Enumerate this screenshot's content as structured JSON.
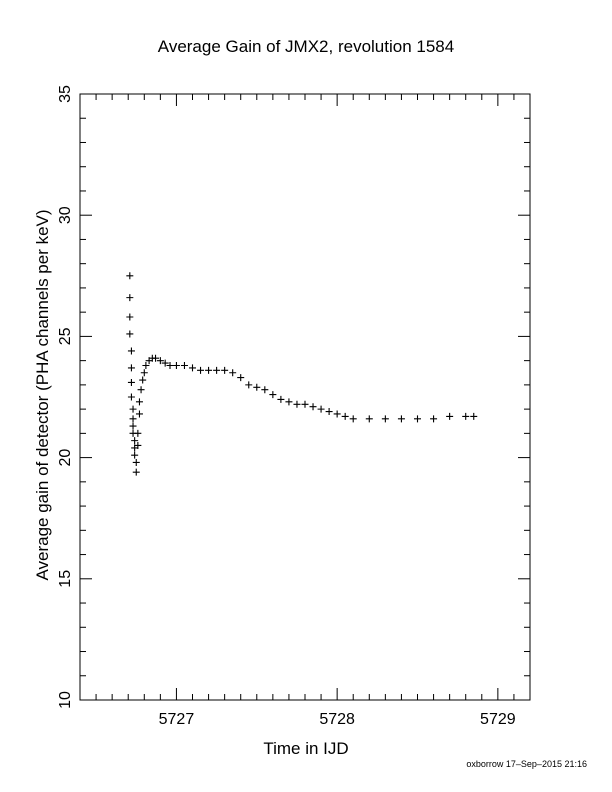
{
  "chart_data": {
    "type": "scatter",
    "title": "Average Gain of JMX2, revolution 1584",
    "xlabel": "Time in IJD",
    "ylabel": "Average gain of detector (PHA channels per keV)",
    "xlim": [
      5726.4,
      5729.2
    ],
    "ylim": [
      10,
      35
    ],
    "xticks": [
      5727,
      5728,
      5729
    ],
    "yticks": [
      10,
      15,
      20,
      25,
      30,
      35
    ],
    "grid": false,
    "marker": "+",
    "series": [
      {
        "x": [
          5726.71,
          5726.71,
          5726.71,
          5726.71,
          5726.72,
          5726.72,
          5726.72,
          5726.72,
          5726.73,
          5726.73,
          5726.73,
          5726.73,
          5726.74,
          5726.74,
          5726.74,
          5726.75,
          5726.75,
          5726.76,
          5726.76,
          5726.77,
          5726.77,
          5726.78,
          5726.79,
          5726.8,
          5726.81,
          5726.83,
          5726.85,
          5726.87,
          5726.9,
          5726.93,
          5726.96,
          5727.0,
          5727.05,
          5727.1,
          5727.15,
          5727.2,
          5727.25,
          5727.3,
          5727.35,
          5727.4,
          5727.45,
          5727.5,
          5727.55,
          5727.6,
          5727.65,
          5727.7,
          5727.75,
          5727.8,
          5727.85,
          5727.9,
          5727.95,
          5728.0,
          5728.05,
          5728.1,
          5728.2,
          5728.3,
          5728.4,
          5728.5,
          5728.6,
          5728.7,
          5728.8,
          5728.85
        ],
        "y": [
          27.5,
          26.6,
          25.8,
          25.1,
          24.4,
          23.7,
          23.1,
          22.5,
          22.0,
          21.6,
          21.3,
          21.0,
          20.7,
          20.4,
          20.1,
          19.8,
          19.4,
          20.5,
          21.0,
          21.8,
          22.3,
          22.8,
          23.2,
          23.5,
          23.8,
          24.0,
          24.1,
          24.1,
          24.0,
          23.9,
          23.8,
          23.8,
          23.8,
          23.7,
          23.6,
          23.6,
          23.6,
          23.6,
          23.5,
          23.3,
          23.0,
          22.9,
          22.8,
          22.6,
          22.4,
          22.3,
          22.2,
          22.2,
          22.1,
          22.0,
          21.9,
          21.8,
          21.7,
          21.6,
          21.6,
          21.6,
          21.6,
          21.6,
          21.6,
          21.7,
          21.7,
          21.7
        ]
      }
    ]
  },
  "footer": "oxborrow 17–Sep–2015 21:16"
}
